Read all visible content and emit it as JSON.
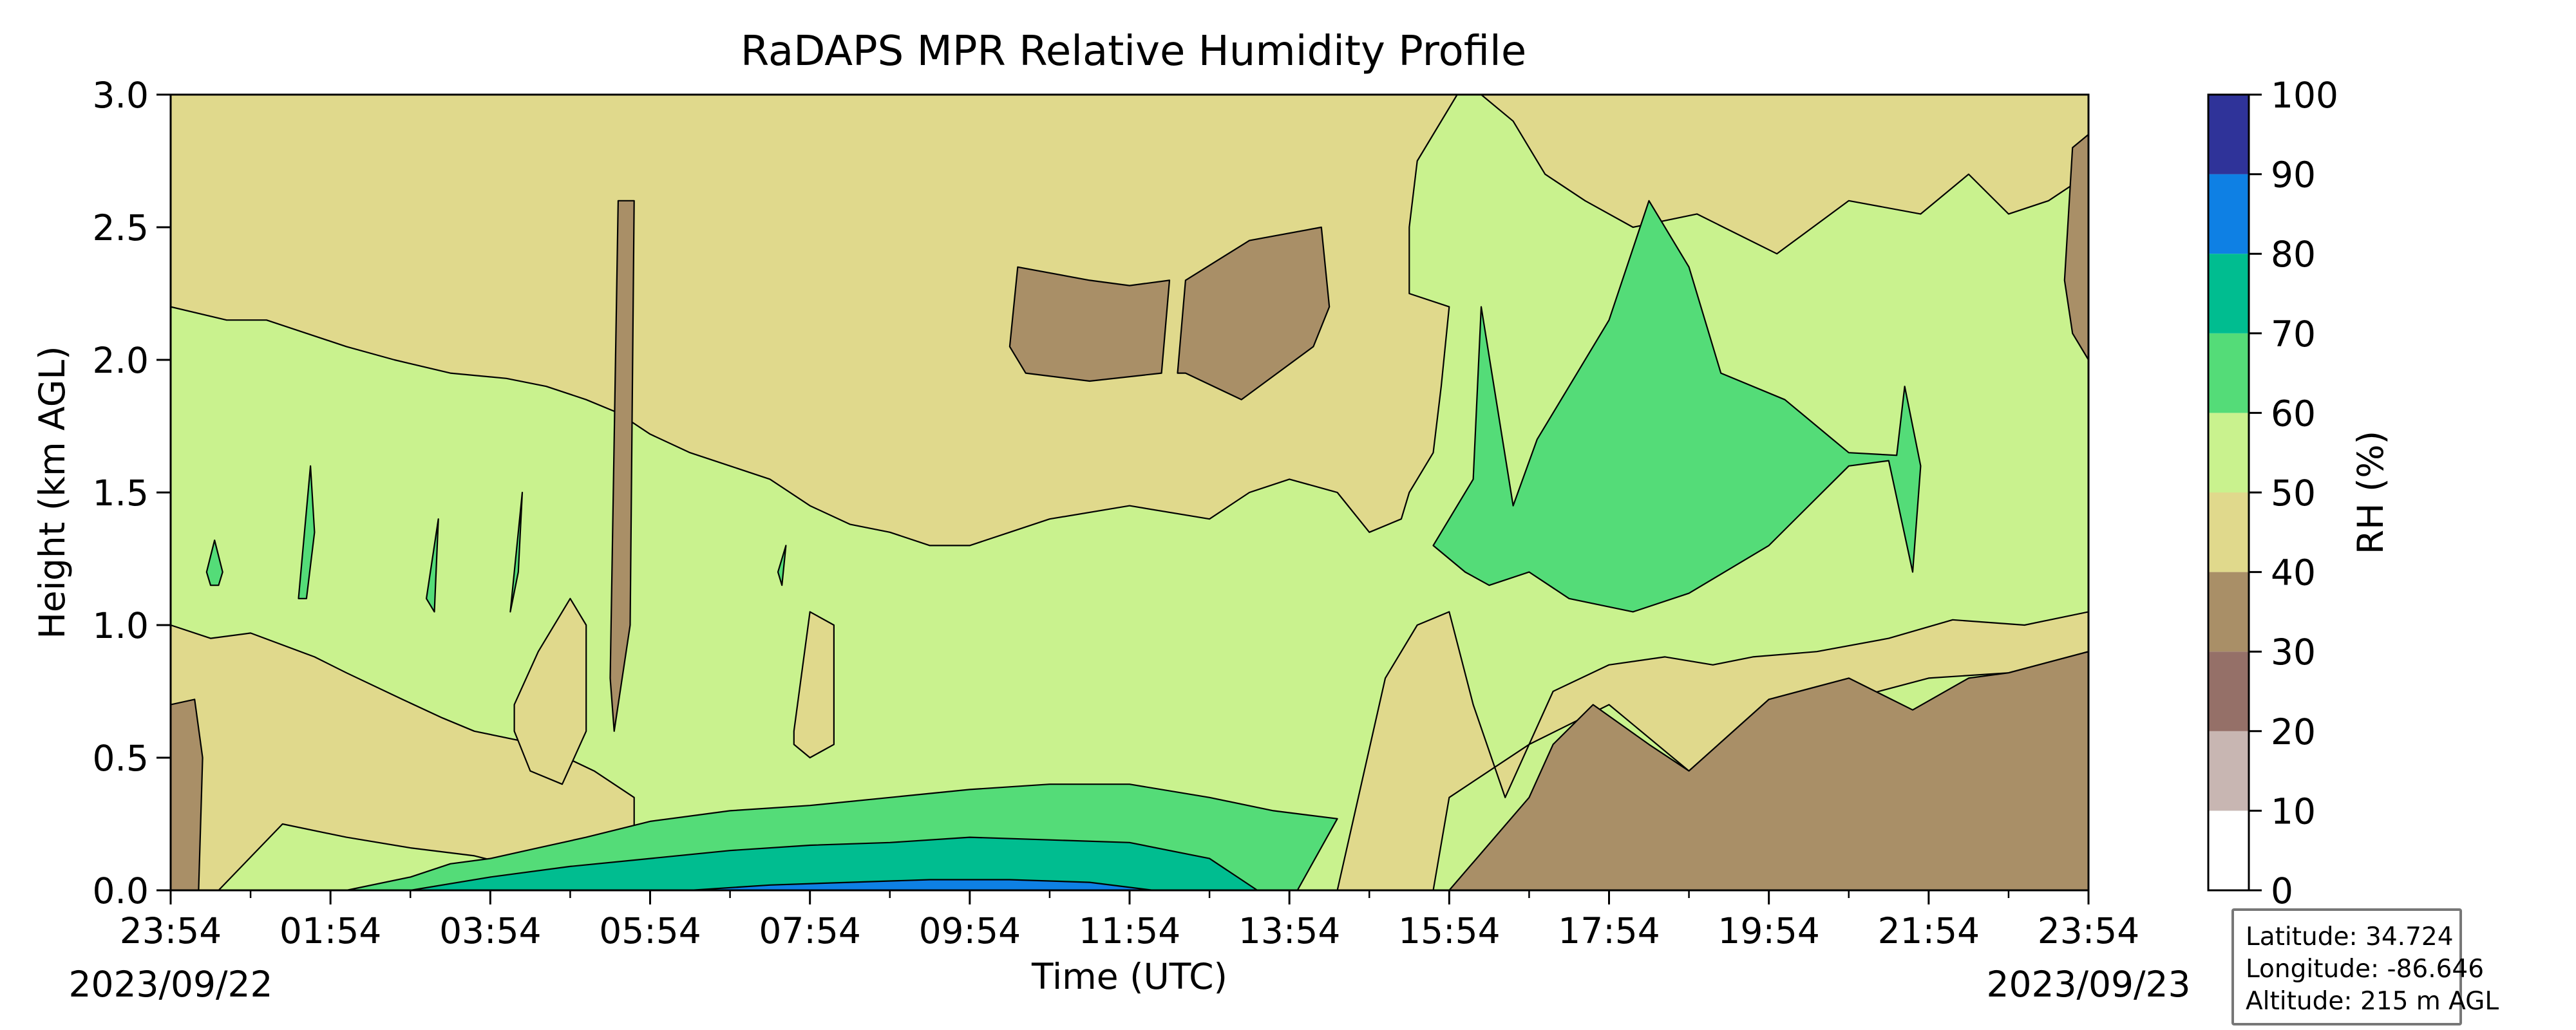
{
  "chart_data": {
    "type": "heatmap",
    "title": "RaDAPS MPR Relative Humidity Profile",
    "xlabel": "Time (UTC)",
    "ylabel": "Height (km AGL)",
    "x_ticks": [
      "23:54",
      "01:54",
      "03:54",
      "05:54",
      "07:54",
      "09:54",
      "11:54",
      "13:54",
      "15:54",
      "17:54",
      "19:54",
      "21:54",
      "23:54"
    ],
    "x_minor_ticks_hours": 1,
    "xlim_hours": [
      0,
      24
    ],
    "start_date": "2023/09/22",
    "end_date": "2023/09/23",
    "y_ticks": [
      "0.0",
      "0.5",
      "1.0",
      "1.5",
      "2.0",
      "2.5",
      "3.0"
    ],
    "ylim": [
      0,
      3
    ],
    "colorbar": {
      "label": "RH (%)",
      "levels": [
        0,
        10,
        20,
        30,
        40,
        50,
        60,
        70,
        80,
        90,
        100
      ],
      "colors": [
        "#ffffff",
        "#c8b6b2",
        "#957068",
        "#a98f67",
        "#e0d98c",
        "#c9f28e",
        "#54dc78",
        "#00bd90",
        "#0e80e4",
        "#2f3399"
      ]
    },
    "contour_bands": [
      {
        "level": "30-40",
        "color": "#a98f67",
        "regions": [
          {
            "t": [
              0.0,
              0.0,
              0.3,
              0.4,
              0.35,
              0.1
            ],
            "h": [
              0.0,
              0.7,
              0.72,
              0.5,
              0.0,
              0.0
            ]
          },
          {
            "t": [
              5.5,
              5.6,
              5.8,
              5.75,
              5.55
            ],
            "h": [
              0.8,
              2.6,
              2.6,
              1.0,
              0.6
            ]
          },
          {
            "t": [
              10.5,
              10.6,
              11.5,
              12.0,
              12.5,
              12.4,
              11.5,
              10.7
            ],
            "h": [
              2.05,
              2.35,
              2.3,
              2.28,
              2.3,
              1.95,
              1.92,
              1.95
            ]
          },
          {
            "t": [
              12.6,
              12.7,
              13.5,
              14.4,
              14.5,
              14.3,
              13.4,
              12.7
            ],
            "h": [
              1.95,
              2.3,
              2.45,
              2.5,
              2.2,
              2.05,
              1.85,
              1.95
            ]
          },
          {
            "t": [
              16.0,
              17.0,
              17.3,
              17.8,
              18.5,
              19.0,
              20.0,
              21.0,
              21.8,
              22.5,
              23.0,
              24.0,
              24.0
            ],
            "h": [
              0.0,
              0.35,
              0.55,
              0.7,
              0.55,
              0.45,
              0.72,
              0.8,
              0.68,
              0.8,
              0.82,
              0.9,
              0.0
            ]
          },
          {
            "t": [
              23.7,
              23.8,
              24.0,
              24.0,
              23.8
            ],
            "h": [
              2.3,
              2.8,
              2.85,
              2.0,
              2.1
            ]
          }
        ]
      },
      {
        "level": "40-50",
        "color": "#e0d98c",
        "regions": [
          {
            "t": [
              0.0,
              0.0,
              0.5,
              1.0,
              1.8,
              2.2,
              2.9,
              3.4,
              3.8,
              4.6,
              5.3,
              5.8,
              5.8,
              5.3,
              4.6,
              3.8,
              3.0,
              2.2,
              1.4,
              0.6
            ],
            "h": [
              0.0,
              1.0,
              0.95,
              0.97,
              0.88,
              0.82,
              0.72,
              0.65,
              0.6,
              0.55,
              0.45,
              0.35,
              0.0,
              0.0,
              0.07,
              0.13,
              0.16,
              0.2,
              0.25,
              0.0
            ]
          },
          {
            "t": [
              0.0,
              0.0,
              24.0,
              24.0,
              23.5,
              23.0,
              22.5,
              21.9,
              21.0,
              20.1,
              19.1,
              18.3,
              17.7,
              17.2,
              16.8,
              16.4,
              16.1,
              15.6,
              15.5,
              15.5,
              16.0,
              15.9,
              15.8,
              15.5,
              15.4,
              15.0,
              14.6,
              14.0,
              13.5,
              13.0,
              12.0,
              11.0,
              10.5,
              10.0,
              9.5,
              9.0,
              8.5,
              8.0,
              7.5,
              7.0,
              6.5,
              6.0,
              5.6,
              5.2,
              4.7,
              4.2,
              3.5,
              2.8,
              2.2,
              1.7,
              1.2,
              0.7
            ],
            "h": [
              2.2,
              3.0,
              3.0,
              2.7,
              2.6,
              2.55,
              2.7,
              2.55,
              2.6,
              2.4,
              2.55,
              2.5,
              2.6,
              2.7,
              2.9,
              3.0,
              3.0,
              2.75,
              2.5,
              2.25,
              2.2,
              1.9,
              1.65,
              1.5,
              1.4,
              1.35,
              1.5,
              1.55,
              1.5,
              1.4,
              1.45,
              1.4,
              1.35,
              1.3,
              1.3,
              1.35,
              1.38,
              1.45,
              1.55,
              1.6,
              1.65,
              1.72,
              1.8,
              1.85,
              1.9,
              1.93,
              1.95,
              2.0,
              2.05,
              2.1,
              2.15,
              2.15
            ]
          },
          {
            "t": [
              4.3,
              4.6,
              5.0,
              5.2,
              5.2,
              4.9,
              4.5,
              4.3
            ],
            "h": [
              0.7,
              0.9,
              1.1,
              1.0,
              0.6,
              0.4,
              0.45,
              0.6
            ]
          },
          {
            "t": [
              7.8,
              8.0,
              8.3,
              8.3,
              8.0,
              7.8
            ],
            "h": [
              0.6,
              1.05,
              1.0,
              0.55,
              0.5,
              0.55
            ]
          },
          {
            "t": [
              14.6,
              15.2,
              15.6,
              16.0,
              16.3,
              16.7,
              17.0,
              17.3,
              18.0,
              18.7,
              19.3,
              19.8,
              20.6,
              21.5,
              22.3,
              23.2,
              24.0,
              24.0,
              23.0,
              22.0,
              21.0,
              20.0,
              19.0,
              18.0,
              17.0,
              16.0,
              15.8
            ],
            "h": [
              0.0,
              0.8,
              1.0,
              1.05,
              0.7,
              0.35,
              0.55,
              0.75,
              0.85,
              0.88,
              0.85,
              0.88,
              0.9,
              0.95,
              1.02,
              1.0,
              1.05,
              0.9,
              0.82,
              0.8,
              0.72,
              0.72,
              0.45,
              0.7,
              0.55,
              0.35,
              0.0
            ]
          }
        ]
      },
      {
        "level": "50-60",
        "color": "#c9f28e",
        "regions": [
          {
            "t": [
              0.0,
              0.0,
              24.0,
              24.0
            ],
            "h": [
              0.0,
              3.0,
              3.0,
              0.0
            ]
          }
        ]
      },
      {
        "level": "60-70",
        "color": "#54dc78",
        "regions": [
          {
            "t": [
              2.2,
              3.0,
              3.5,
              4.0,
              4.6,
              5.2,
              6.0,
              7.0,
              8.0,
              9.0,
              10.0,
              11.0,
              12.0,
              13.0,
              13.8,
              14.6,
              14.1,
              13.5,
              12.5,
              11.5,
              10.5,
              9.5,
              8.5,
              7.5,
              6.5,
              5.5,
              4.7,
              3.5
            ],
            "h": [
              0.0,
              0.05,
              0.1,
              0.12,
              0.16,
              0.2,
              0.26,
              0.3,
              0.32,
              0.35,
              0.38,
              0.4,
              0.4,
              0.35,
              0.3,
              0.27,
              0.0,
              0.0,
              0.0,
              0.0,
              0.0,
              0.0,
              0.0,
              0.0,
              0.0,
              0.0,
              0.0,
              0.0
            ]
          },
          {
            "t": [
              15.8,
              16.3,
              16.4,
              16.8,
              17.1,
              17.5,
              18.0,
              18.5,
              19.0,
              19.4,
              20.2,
              20.8,
              21.0,
              21.6,
              21.7,
              21.9,
              21.8,
              21.5,
              21.0,
              20.5,
              20.0,
              19.0,
              18.3,
              17.5,
              17.0,
              16.5,
              16.2
            ],
            "h": [
              1.3,
              1.55,
              2.2,
              1.45,
              1.7,
              1.9,
              2.15,
              2.6,
              2.35,
              1.95,
              1.85,
              1.7,
              1.65,
              1.64,
              1.9,
              1.6,
              1.2,
              1.62,
              1.6,
              1.45,
              1.3,
              1.12,
              1.05,
              1.1,
              1.2,
              1.15,
              1.2
            ]
          },
          {
            "t": [
              0.45,
              0.55,
              0.65,
              0.6,
              0.5
            ],
            "h": [
              1.2,
              1.32,
              1.2,
              1.15,
              1.15
            ]
          },
          {
            "t": [
              1.6,
              1.75,
              1.8,
              1.7,
              1.6
            ],
            "h": [
              1.1,
              1.6,
              1.35,
              1.1,
              1.1
            ]
          },
          {
            "t": [
              3.2,
              3.35,
              3.3,
              3.2
            ],
            "h": [
              1.1,
              1.4,
              1.05,
              1.1
            ]
          },
          {
            "t": [
              4.25,
              4.4,
              4.35,
              4.25
            ],
            "h": [
              1.05,
              1.5,
              1.2,
              1.05
            ]
          },
          {
            "t": [
              7.6,
              7.7,
              7.65,
              7.6
            ],
            "h": [
              1.2,
              1.3,
              1.15,
              1.2
            ]
          }
        ]
      },
      {
        "level": "70-80",
        "color": "#00bd90",
        "regions": [
          {
            "t": [
              3.0,
              4.0,
              5.0,
              6.0,
              7.0,
              8.0,
              9.0,
              10.0,
              11.0,
              12.0,
              13.0,
              13.6,
              13.2,
              12.0,
              10.0,
              8.0,
              6.0,
              4.0
            ],
            "h": [
              0.0,
              0.05,
              0.09,
              0.12,
              0.15,
              0.17,
              0.18,
              0.2,
              0.19,
              0.18,
              0.12,
              0.0,
              0.0,
              0.0,
              0.0,
              0.0,
              0.0,
              0.0
            ]
          }
        ]
      },
      {
        "level": "80-90",
        "color": "#0e80e4",
        "regions": [
          {
            "t": [
              6.5,
              7.5,
              8.5,
              9.5,
              10.5,
              11.5,
              12.3,
              12.0,
              10.0,
              8.0
            ],
            "h": [
              0.0,
              0.02,
              0.03,
              0.04,
              0.04,
              0.03,
              0.0,
              0.0,
              0.0,
              0.0
            ]
          }
        ]
      }
    ],
    "annotation": {
      "latitude": "Latitude: 34.724",
      "longitude": "Longitude: -86.646",
      "altitude": "Altitude: 215 m AGL"
    }
  }
}
